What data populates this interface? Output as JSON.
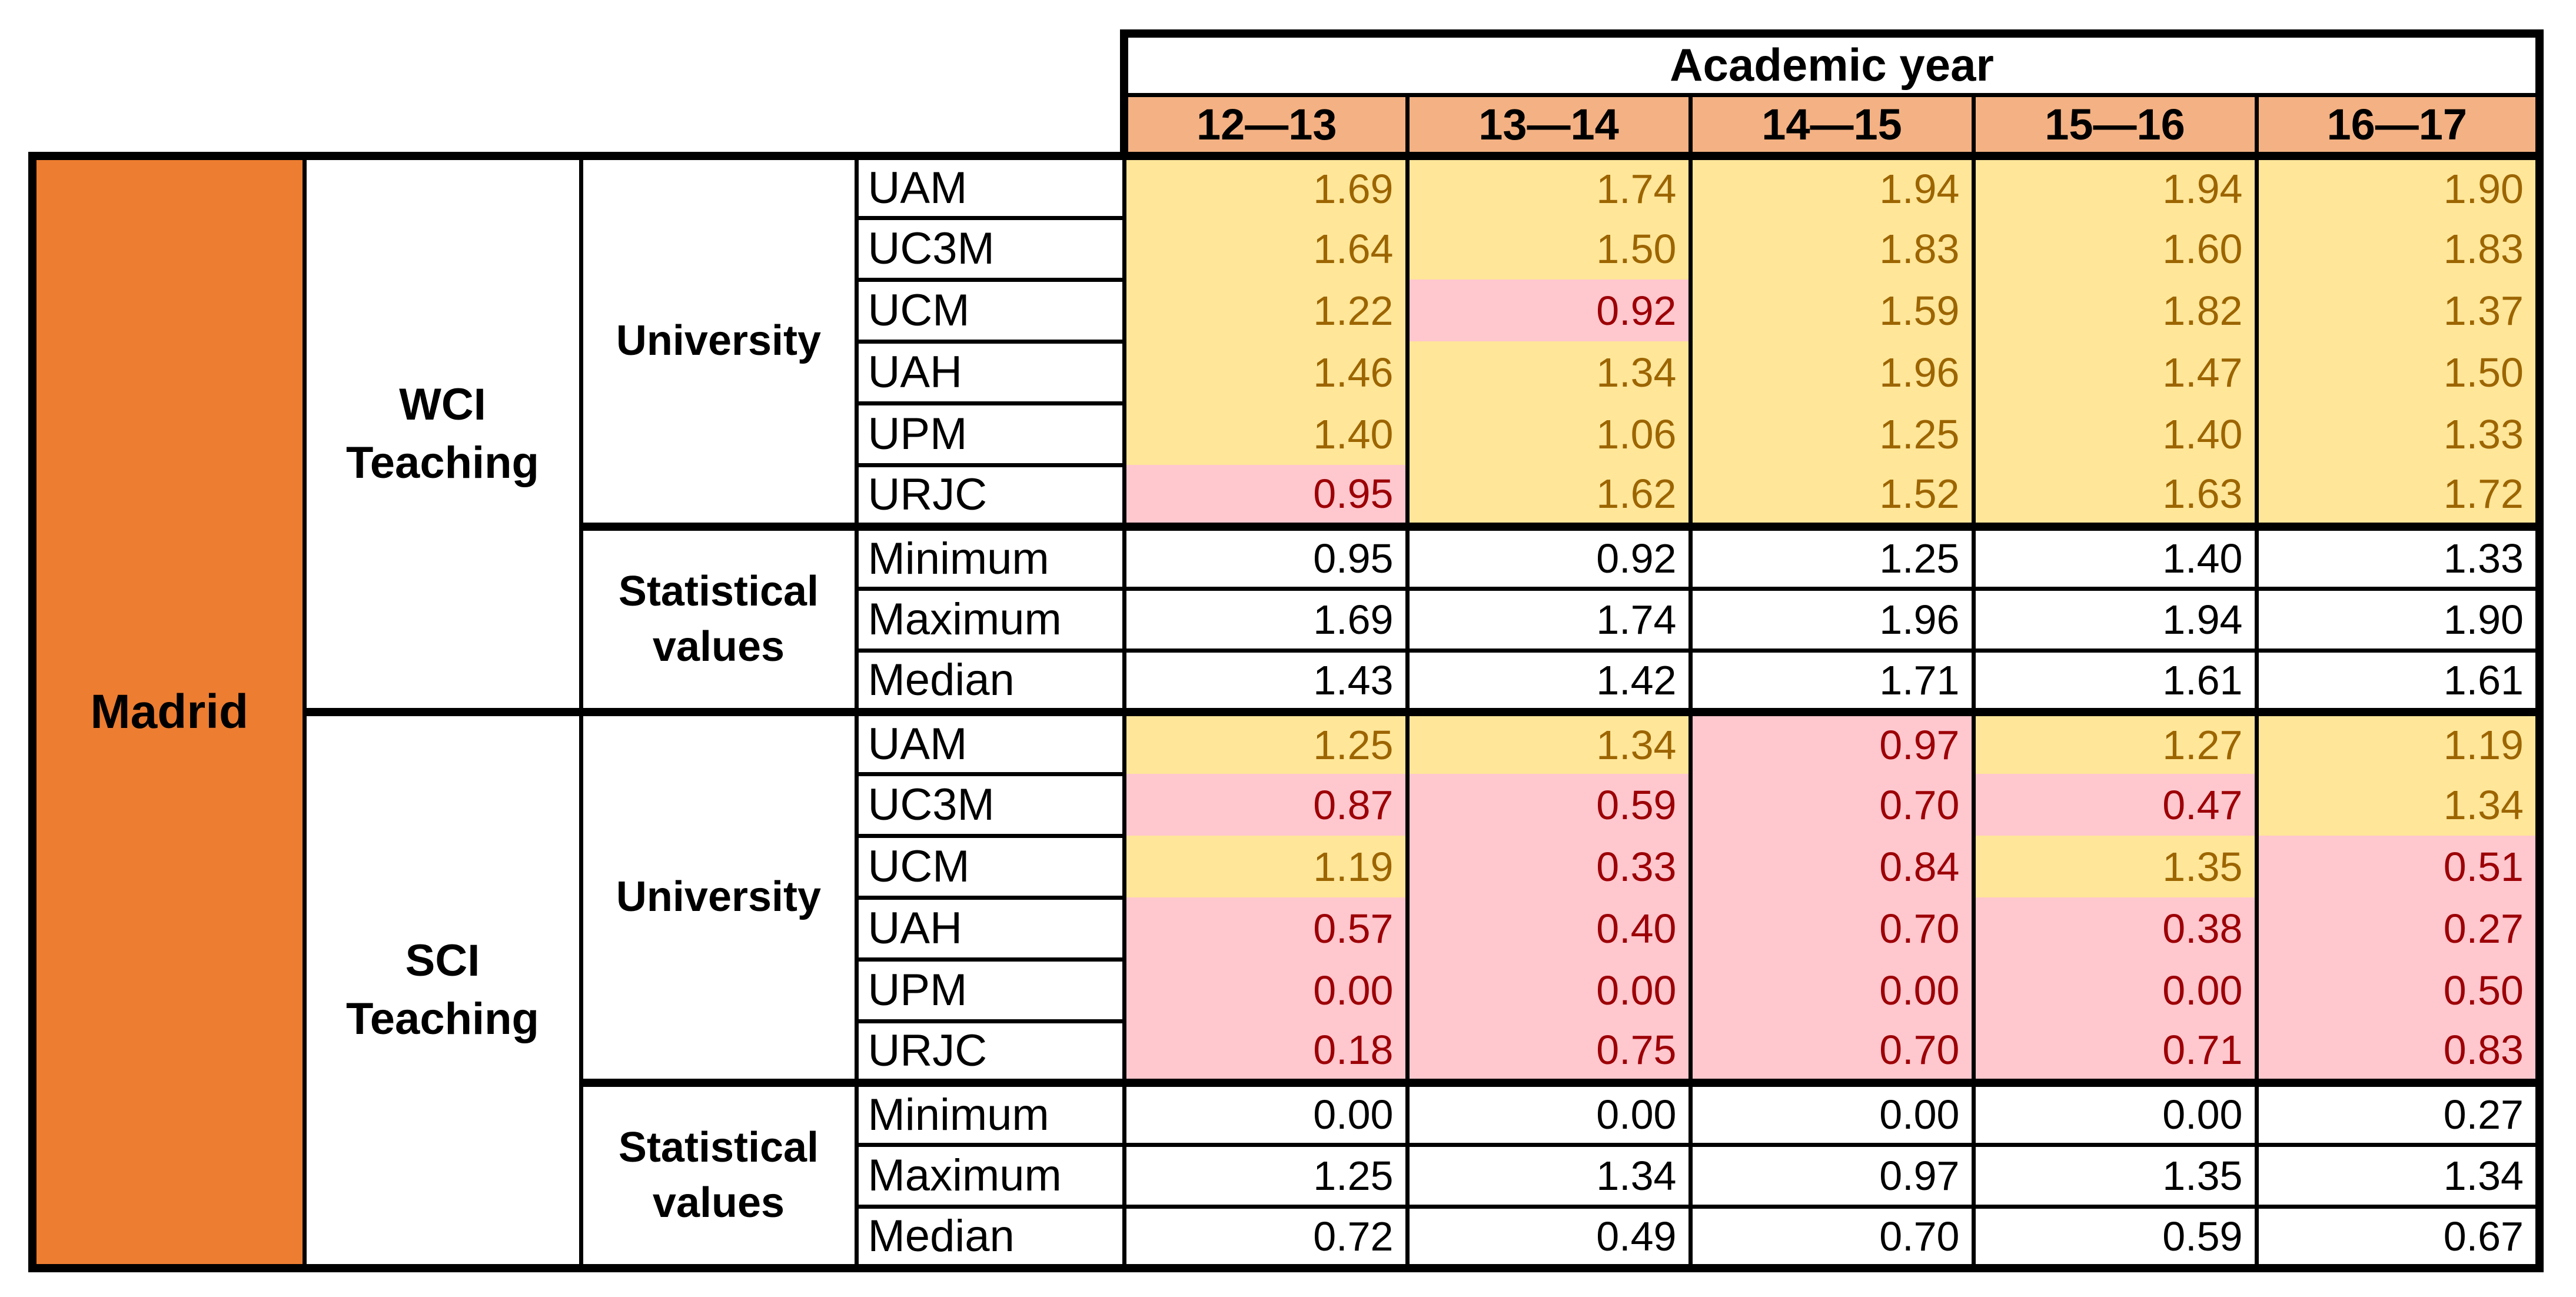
{
  "header": {
    "academic_year": "Academic year"
  },
  "colors": {
    "region_fill": "#ED7D31",
    "year_header_fill": "#F4B183",
    "good_fill": "#FFE699",
    "good_text": "#9C6500",
    "bad_fill": "#FFC7CE",
    "bad_text": "#9C0006",
    "border": "#000000"
  },
  "chart_data": {
    "type": "table",
    "title": "Academic year",
    "region": "Madrid",
    "columns": [
      "12—13",
      "13—14",
      "14—15",
      "15—16",
      "16—17"
    ],
    "legend_note": "yellow = value ≥ 1.00, pink = value < 1.00",
    "sections": [
      {
        "label": "WCI Teaching",
        "group_university": "University",
        "group_stats": "Statistical values",
        "universities": [
          {
            "name": "UAM",
            "display": [
              "1.69",
              "1.74",
              "1.94",
              "1.94",
              "1.90"
            ],
            "flags": [
              "g",
              "g",
              "g",
              "g",
              "g"
            ]
          },
          {
            "name": "UC3M",
            "display": [
              "1.64",
              "1.50",
              "1.83",
              "1.60",
              "1.83"
            ],
            "flags": [
              "g",
              "g",
              "g",
              "g",
              "g"
            ]
          },
          {
            "name": "UCM",
            "display": [
              "1.22",
              "0.92",
              "1.59",
              "1.82",
              "1.37"
            ],
            "flags": [
              "g",
              "b",
              "g",
              "g",
              "g"
            ]
          },
          {
            "name": "UAH",
            "display": [
              "1.46",
              "1.34",
              "1.96",
              "1.47",
              "1.50"
            ],
            "flags": [
              "g",
              "g",
              "g",
              "g",
              "g"
            ]
          },
          {
            "name": "UPM",
            "display": [
              "1.40",
              "1.06",
              "1.25",
              "1.40",
              "1.33"
            ],
            "flags": [
              "g",
              "g",
              "g",
              "g",
              "g"
            ]
          },
          {
            "name": "URJC",
            "display": [
              "0.95",
              "1.62",
              "1.52",
              "1.63",
              "1.72"
            ],
            "flags": [
              "b",
              "g",
              "g",
              "g",
              "g"
            ]
          }
        ],
        "stats": [
          {
            "name": "Minimum",
            "display": [
              "0.95",
              "0.92",
              "1.25",
              "1.40",
              "1.33"
            ]
          },
          {
            "name": "Maximum",
            "display": [
              "1.69",
              "1.74",
              "1.96",
              "1.94",
              "1.90"
            ]
          },
          {
            "name": "Median",
            "display": [
              "1.43",
              "1.42",
              "1.71",
              "1.61",
              "1.61"
            ]
          }
        ]
      },
      {
        "label": "SCI Teaching",
        "group_university": "University",
        "group_stats": "Statistical values",
        "universities": [
          {
            "name": "UAM",
            "display": [
              "1.25",
              "1.34",
              "0.97",
              "1.27",
              "1.19"
            ],
            "flags": [
              "g",
              "g",
              "b",
              "g",
              "g"
            ]
          },
          {
            "name": "UC3M",
            "display": [
              "0.87",
              "0.59",
              "0.70",
              "0.47",
              "1.34"
            ],
            "flags": [
              "b",
              "b",
              "b",
              "b",
              "g"
            ]
          },
          {
            "name": "UCM",
            "display": [
              "1.19",
              "0.33",
              "0.84",
              "1.35",
              "0.51"
            ],
            "flags": [
              "g",
              "b",
              "b",
              "g",
              "b"
            ]
          },
          {
            "name": "UAH",
            "display": [
              "0.57",
              "0.40",
              "0.70",
              "0.38",
              "0.27"
            ],
            "flags": [
              "b",
              "b",
              "b",
              "b",
              "b"
            ]
          },
          {
            "name": "UPM",
            "display": [
              "0.00",
              "0.00",
              "0.00",
              "0.00",
              "0.50"
            ],
            "flags": [
              "b",
              "b",
              "b",
              "b",
              "b"
            ]
          },
          {
            "name": "URJC",
            "display": [
              "0.18",
              "0.75",
              "0.70",
              "0.71",
              "0.83"
            ],
            "flags": [
              "b",
              "b",
              "b",
              "b",
              "b"
            ]
          }
        ],
        "stats": [
          {
            "name": "Minimum",
            "display": [
              "0.00",
              "0.00",
              "0.00",
              "0.00",
              "0.27"
            ]
          },
          {
            "name": "Maximum",
            "display": [
              "1.25",
              "1.34",
              "0.97",
              "1.35",
              "1.34"
            ]
          },
          {
            "name": "Median",
            "display": [
              "0.72",
              "0.49",
              "0.70",
              "0.59",
              "0.67"
            ]
          }
        ]
      }
    ]
  }
}
